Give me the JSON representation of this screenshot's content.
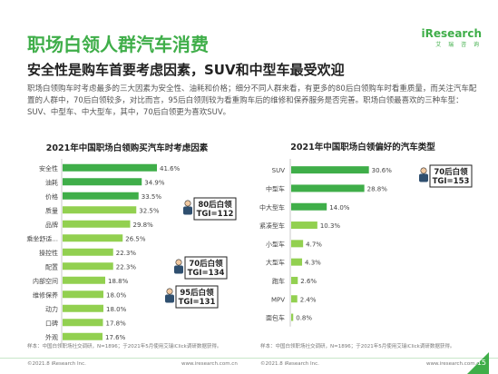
{
  "header": {
    "title": "职场白领人群汽车消费",
    "subtitle": "安全性是购车首要考虑因素，SUV和中型车最受欢迎",
    "desc": "职场白领购车时考虑最多的三大因素为安全性、油耗和价格；细分不同人群来看，有更多的80后白领购车时看重质量，而关注汽车配置的人群中，70后白领较多，对比而言，95后白领则较为看重购车后的维修和保养服务是否完善。职场白领最喜欢的三种车型：SUV、中型车、中大型车，其中，70后白领更为喜欢SUV。"
  },
  "logo": {
    "main": "iResearch",
    "sub": "艾 瑞 咨 询"
  },
  "colors": {
    "accent": "#3fae49",
    "bar_light": "#92d050",
    "bar_dark": "#3fae49"
  },
  "chart_data": [
    {
      "type": "bar",
      "orientation": "horizontal",
      "title": "2021年中国职场白领购买汽车时考虑因素",
      "categories": [
        "安全性",
        "油耗",
        "价格",
        "质量",
        "品牌",
        "乘坐舒适...",
        "操控性",
        "配置",
        "内部空间",
        "维修保养",
        "动力",
        "口碑",
        "外观"
      ],
      "values": [
        41.6,
        34.9,
        33.5,
        32.5,
        29.8,
        26.5,
        22.3,
        22.3,
        18.8,
        18.0,
        18.0,
        17.8,
        17.6
      ],
      "value_labels": [
        "41.6%",
        "34.9%",
        "33.5%",
        "32.5%",
        "29.8%",
        "26.5%",
        "22.3%",
        "22.3%",
        "18.8%",
        "18.0%",
        "18.0%",
        "17.8%",
        "17.6%"
      ],
      "xlim": [
        0,
        50
      ],
      "callouts": [
        {
          "category": "质量",
          "lines": [
            "80后白领",
            "TGI=112"
          ],
          "icon": "man-icon"
        },
        {
          "category": "配置",
          "lines": [
            "70后白领",
            "TGI=134"
          ],
          "icon": "man-icon"
        },
        {
          "category": "维修保养",
          "lines": [
            "95后白领",
            "TGI=131"
          ],
          "icon": "man-icon"
        }
      ]
    },
    {
      "type": "bar",
      "orientation": "horizontal",
      "title": "2021年中国职场白领偏好的汽车类型",
      "categories": [
        "SUV",
        "中型车",
        "中大型车",
        "紧凑型车",
        "小型车",
        "大型车",
        "跑车",
        "MPV",
        "面包车"
      ],
      "values": [
        30.6,
        28.8,
        14.0,
        10.3,
        4.7,
        4.3,
        2.6,
        2.4,
        0.8
      ],
      "value_labels": [
        "30.6%",
        "28.8%",
        "14.0%",
        "10.3%",
        "4.7%",
        "4.3%",
        "2.6%",
        "2.4%",
        "0.8%"
      ],
      "xlim": [
        0,
        50
      ],
      "callouts": [
        {
          "category": "SUV",
          "lines": [
            "70后白领",
            "TGI=153"
          ],
          "icon": "man-icon"
        }
      ]
    }
  ],
  "notes": {
    "left": "样本：中国白领职场社交调研，N=1896；于2021年5月使用艾瑞iClick调研数据获得。",
    "right": "样本：中国白领职场社交调研，N=1896；于2021年5月使用艾瑞iClick调研数据获得。"
  },
  "footer": {
    "left_copy": "©2021.8 iResearch Inc.",
    "left_url": "www.iresearch.com.cn",
    "right_copy": "©2021.8 iResearch Inc.",
    "right_url": "www.iresearch.com.cn",
    "page": "15"
  }
}
